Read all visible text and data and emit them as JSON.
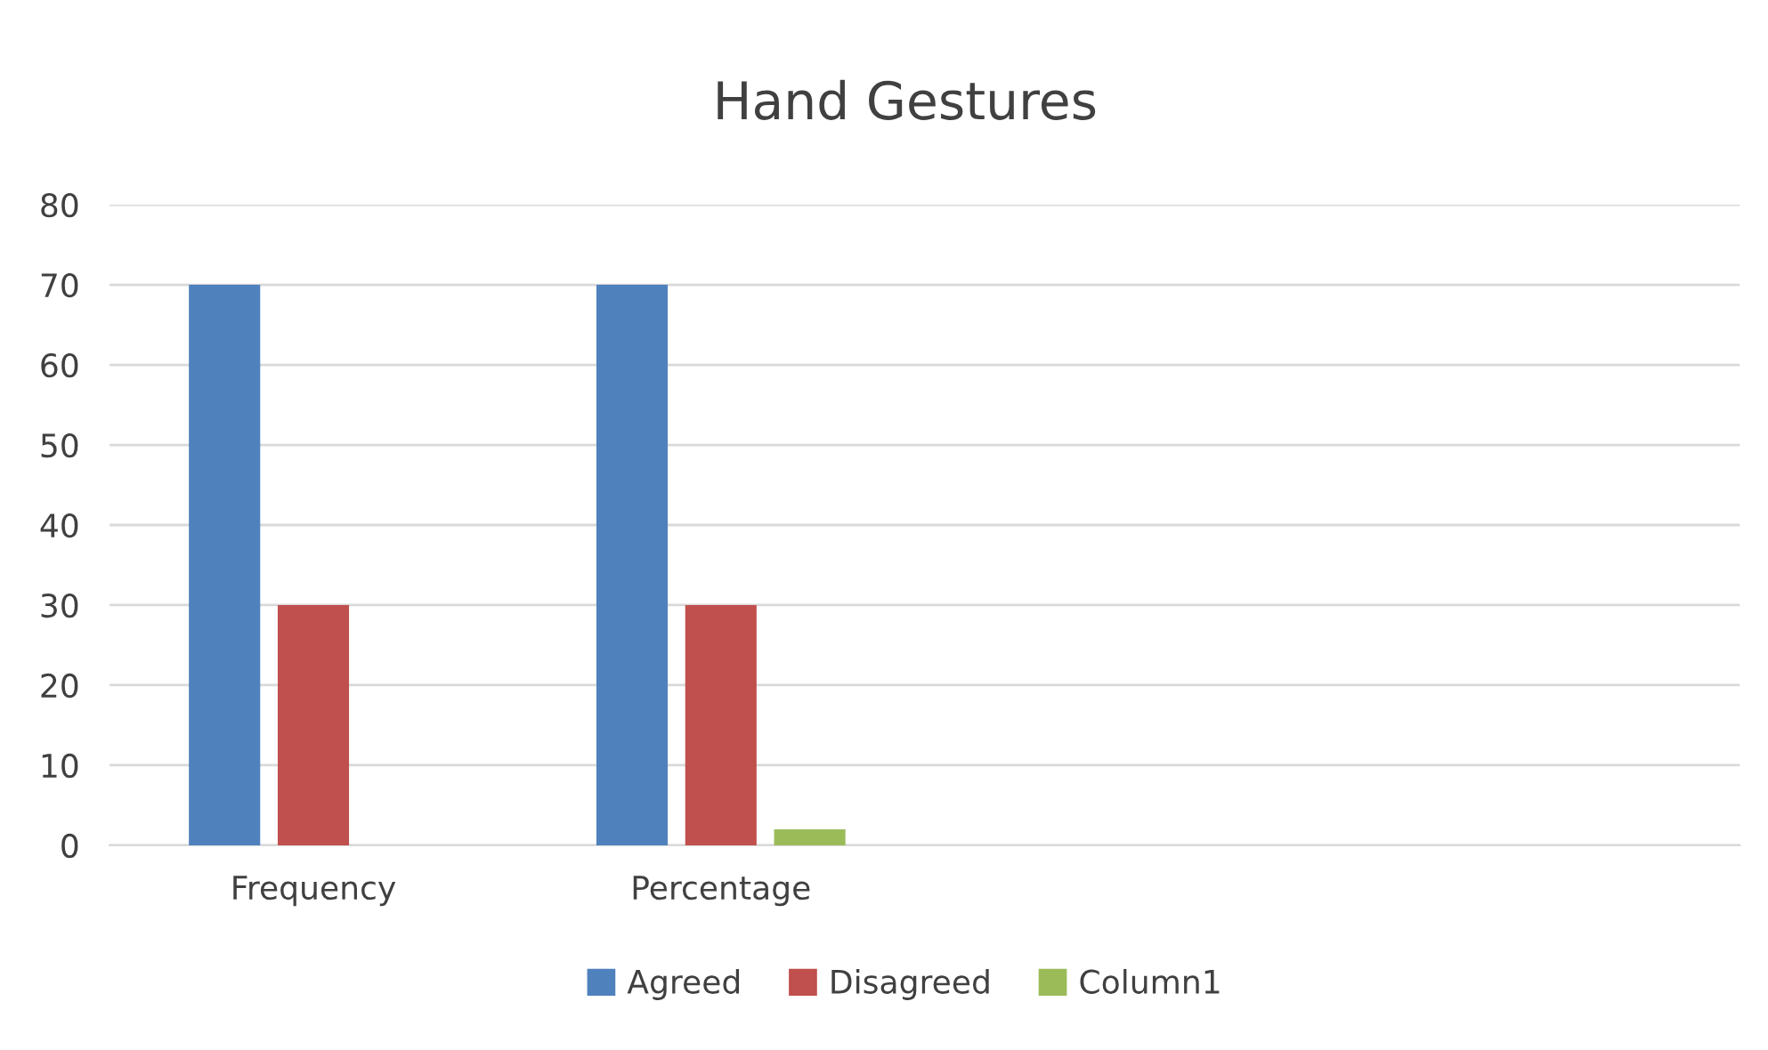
{
  "chart_data": {
    "type": "bar",
    "title": "Hand Gestures",
    "categories": [
      "Frequency",
      "Percentage",
      null,
      null
    ],
    "series": [
      {
        "name": "Agreed",
        "color": "#4f81bd",
        "values": [
          70,
          70,
          null,
          null
        ]
      },
      {
        "name": "Disagreed",
        "color": "#c0504d",
        "values": [
          30,
          30,
          null,
          null
        ]
      },
      {
        "name": "Column1",
        "color": "#9bbb59",
        "values": [
          null,
          2,
          null,
          null
        ]
      }
    ],
    "ylim": [
      0,
      80
    ],
    "yticks": [
      0,
      10,
      20,
      30,
      40,
      50,
      60,
      70,
      80
    ],
    "grid": "y",
    "legend": "bottom"
  }
}
